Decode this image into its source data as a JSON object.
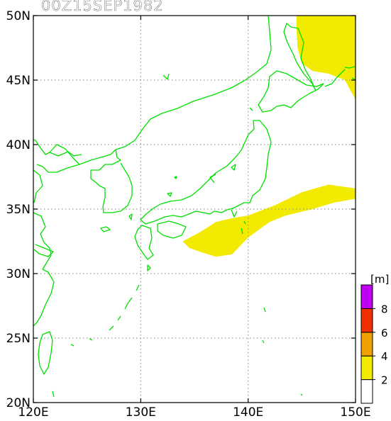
{
  "title": "00Z15SEP1982",
  "map": {
    "lon_range": [
      120,
      150
    ],
    "lat_range": [
      20,
      50
    ],
    "x_ticks": [
      {
        "value": 120,
        "label": "120E"
      },
      {
        "value": 130,
        "label": "130E"
      },
      {
        "value": 140,
        "label": "140E"
      },
      {
        "value": 150,
        "label": "150E"
      }
    ],
    "y_ticks": [
      {
        "value": 20,
        "label": "20N"
      },
      {
        "value": 25,
        "label": "25N"
      },
      {
        "value": 30,
        "label": "30N"
      },
      {
        "value": 35,
        "label": "35N"
      },
      {
        "value": 40,
        "label": "40N"
      },
      {
        "value": 45,
        "label": "45N"
      },
      {
        "value": 50,
        "label": "50N"
      }
    ],
    "coastline_color": "#00e000",
    "grid": "dotted",
    "wave_color": "#f2ea00",
    "wave_areas": [
      {
        "name": "north-east",
        "level": "2-4 m",
        "points": [
          [
            144.5,
            50
          ],
          [
            150,
            50
          ],
          [
            150,
            43.5
          ],
          [
            149,
            45
          ],
          [
            147.5,
            45.5
          ],
          [
            146,
            45.7
          ],
          [
            145,
            46.3
          ],
          [
            144.6,
            47.5
          ],
          [
            144.5,
            49
          ]
        ]
      },
      {
        "name": "south-pacific",
        "level": "2-4 m",
        "points": [
          [
            133.9,
            32.5
          ],
          [
            135.5,
            33.2
          ],
          [
            137,
            34
          ],
          [
            138.5,
            34.3
          ],
          [
            140,
            34.5
          ],
          [
            142.5,
            35.3
          ],
          [
            145,
            36.3
          ],
          [
            147.5,
            36.9
          ],
          [
            150,
            36.6
          ],
          [
            150,
            35.8
          ],
          [
            148,
            35.5
          ],
          [
            146,
            35
          ],
          [
            143.5,
            34.5
          ],
          [
            142,
            34
          ],
          [
            140,
            32.8
          ],
          [
            138.5,
            31.5
          ],
          [
            137,
            31.3
          ],
          [
            135.5,
            31.7
          ],
          [
            134.5,
            32
          ]
        ]
      }
    ]
  },
  "legend": {
    "unit": "[m]",
    "bins": [
      {
        "from": 0,
        "to": 2,
        "color": "#ffffff"
      },
      {
        "from": 2,
        "to": 4,
        "color": "#f2ea00"
      },
      {
        "from": 4,
        "to": 6,
        "color": "#f0a000"
      },
      {
        "from": 6,
        "to": 8,
        "color": "#f03000"
      },
      {
        "from": 8,
        "to": 10,
        "color": "#c000f0"
      }
    ],
    "labels": [
      "2",
      "4",
      "6",
      "8"
    ]
  }
}
